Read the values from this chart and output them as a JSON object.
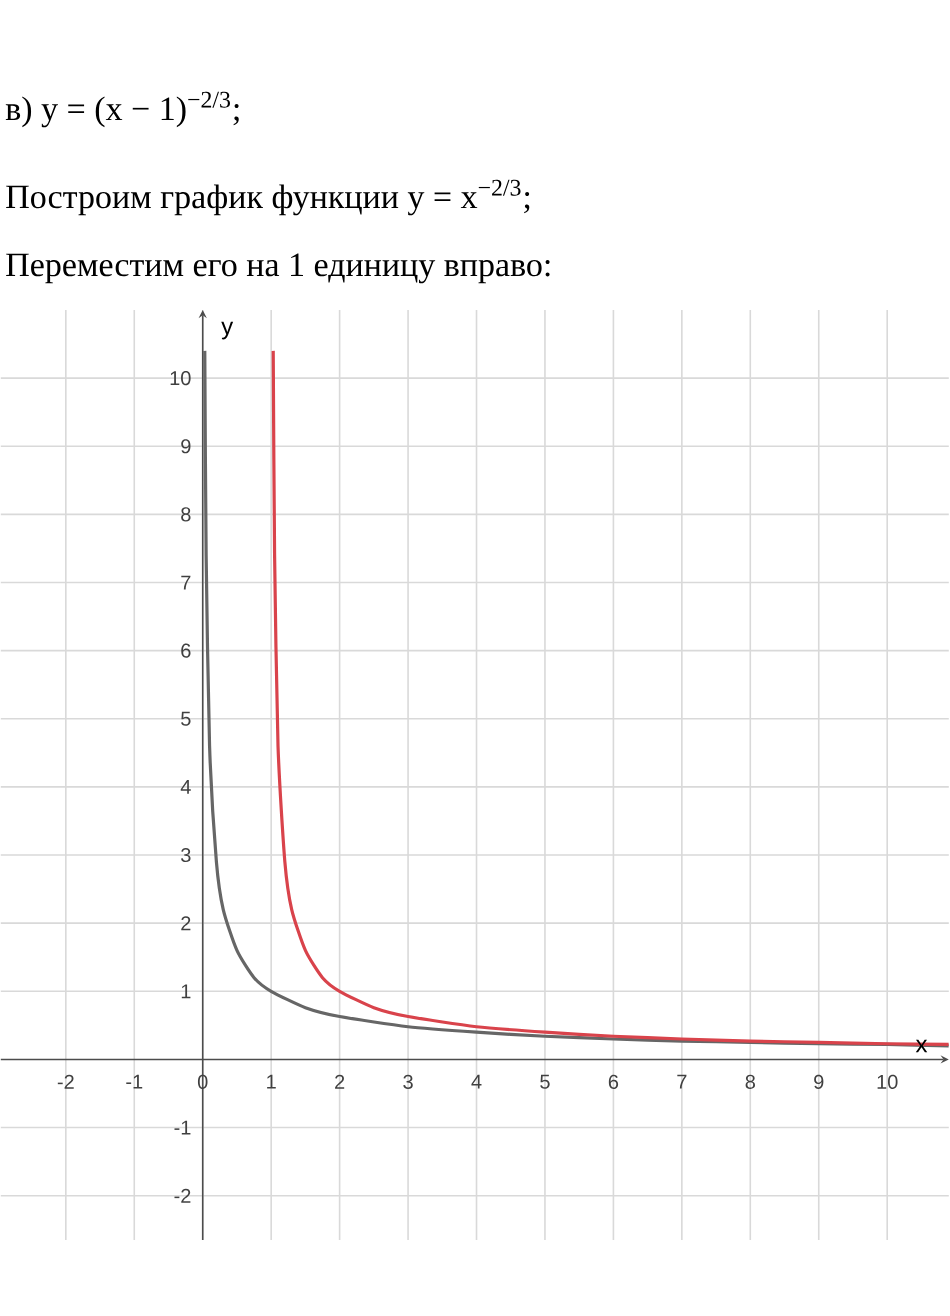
{
  "chart_data": {
    "type": "line",
    "title": "в) y = (x − 1)$^{−2/3}$;",
    "subtitle": "Построим график функции y = x$^{−2/3}$;",
    "annotations": [
      "Переместим его на 1 единицу вправо:"
    ],
    "xlabel": "x",
    "ylabel": "y",
    "xlim": [
      -2.95,
      10.9
    ],
    "ylim": [
      -2.65,
      11
    ],
    "xticks": [
      -2,
      -1,
      0,
      1,
      2,
      3,
      4,
      5,
      6,
      7,
      8,
      9,
      10
    ],
    "yticks": [
      -2,
      -1,
      1,
      2,
      3,
      4,
      5,
      6,
      7,
      8,
      9,
      10
    ],
    "grid": true,
    "series": [
      {
        "color": "#666666",
        "x": [
          0.03,
          0.05,
          0.1,
          0.2,
          0.3,
          0.5,
          0.75,
          1,
          1.5,
          2,
          3,
          4,
          5,
          6,
          7,
          8,
          9,
          10,
          10.9
        ],
        "values": [
          10.4,
          7.4,
          4.6,
          2.9,
          2.2,
          1.6,
          1.2,
          1,
          0.76,
          0.63,
          0.48,
          0.4,
          0.34,
          0.3,
          0.27,
          0.25,
          0.23,
          0.22,
          0.2
        ]
      },
      {
        "color": "#d9434b",
        "x": [
          1.03,
          1.05,
          1.1,
          1.2,
          1.3,
          1.5,
          1.75,
          2,
          2.5,
          3,
          4,
          5,
          6,
          7,
          8,
          9,
          10,
          10.9
        ],
        "values": [
          10.4,
          7.4,
          4.6,
          2.9,
          2.2,
          1.6,
          1.2,
          1,
          0.76,
          0.63,
          0.48,
          0.4,
          0.34,
          0.3,
          0.27,
          0.25,
          0.23,
          0.22
        ]
      }
    ]
  }
}
